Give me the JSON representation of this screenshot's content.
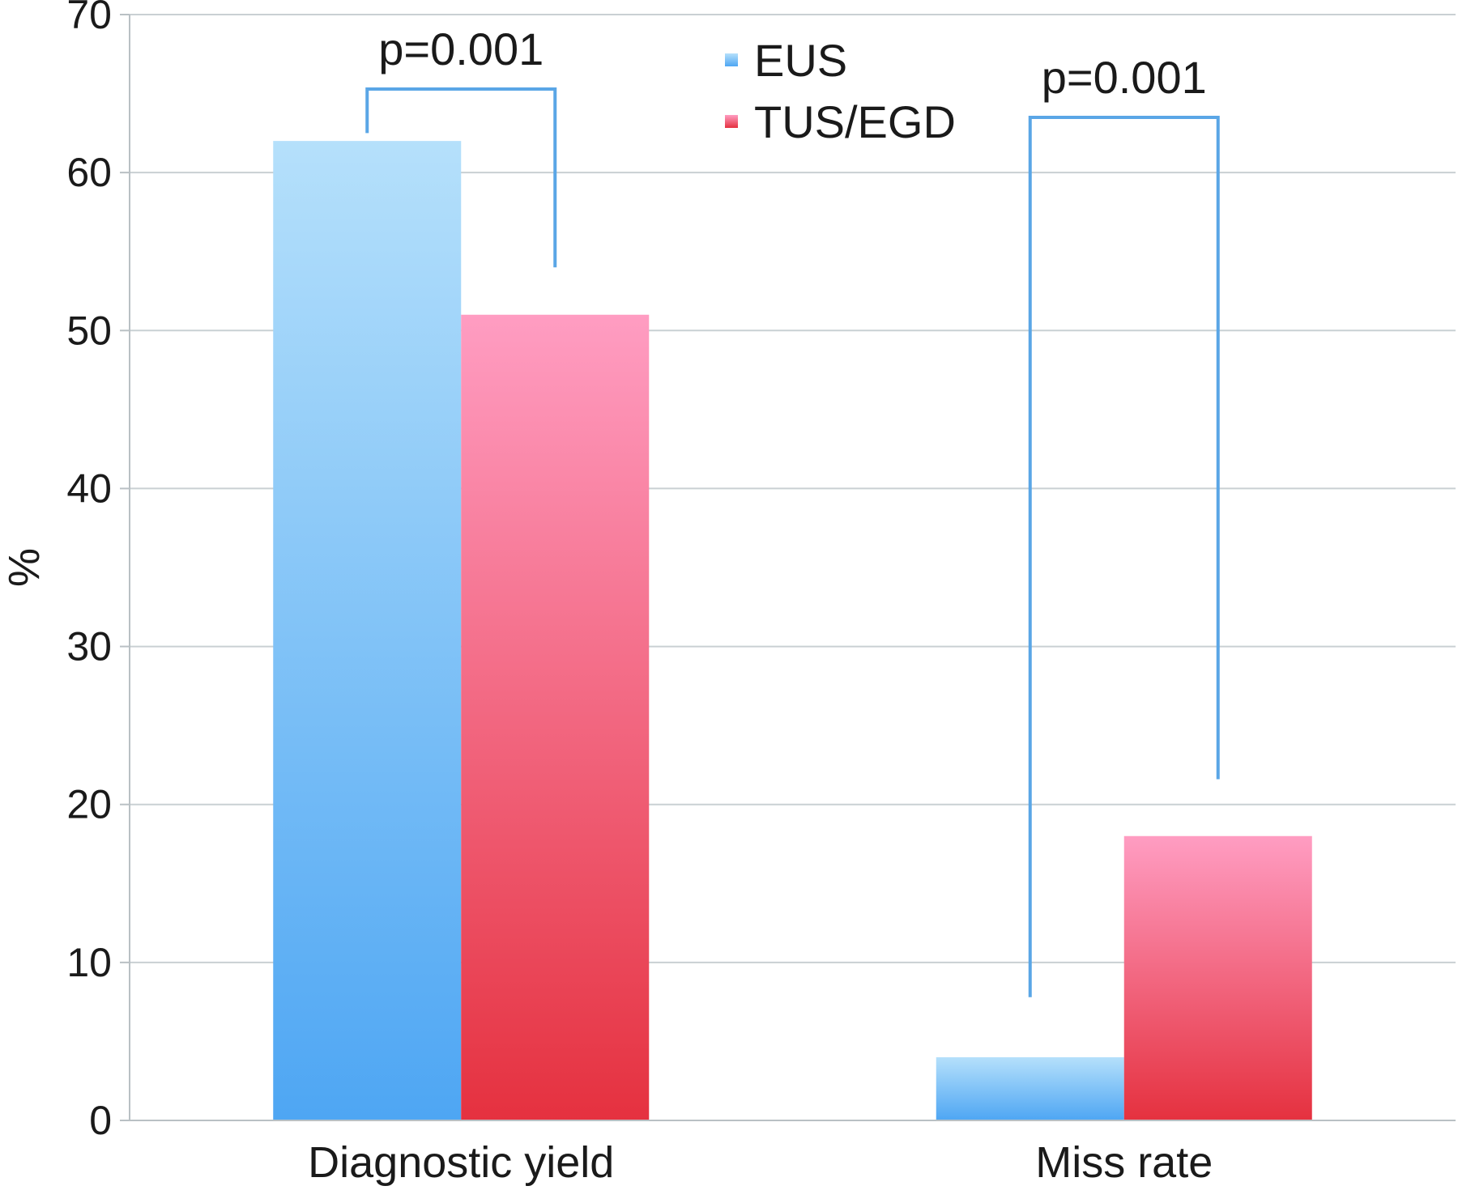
{
  "chart_data": {
    "type": "bar",
    "categories": [
      "Diagnostic yield",
      "Miss rate"
    ],
    "series": [
      {
        "name": "EUS",
        "values": [
          62,
          4
        ]
      },
      {
        "name": "TUS/EGD",
        "values": [
          51,
          18
        ]
      }
    ],
    "ylabel": "%",
    "xlabel": "",
    "ylim": [
      0,
      70
    ],
    "yticks": [
      0,
      10,
      20,
      30,
      40,
      50,
      60,
      70
    ],
    "grid": true,
    "legend_position": "top-center",
    "annotations": [
      {
        "label": "p=0.001",
        "category": "Diagnostic yield",
        "bracket_top": 63,
        "left_end": 62.5,
        "right_end": 54
      },
      {
        "label": "p=0.001",
        "category": "Miss rate",
        "bracket_top": 63,
        "left_end": 7.8,
        "right_end": 21.6
      }
    ],
    "colors": {
      "EUS": {
        "top": "#b5e0fb",
        "bottom": "#4ea6f3"
      },
      "TUS/EGD": {
        "top": "#ff9dc2",
        "bottom": "#e5313f"
      },
      "bracket": "#5aa6e6",
      "grid": "#c9d0d3"
    }
  }
}
